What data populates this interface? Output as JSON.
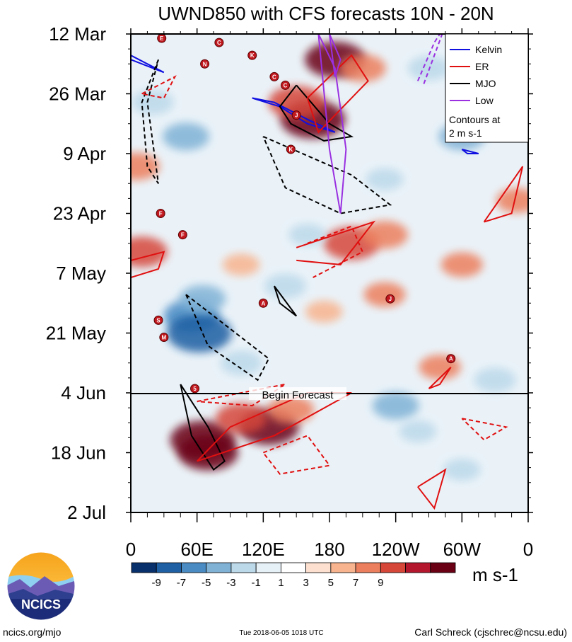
{
  "chart_data": {
    "type": "heatmap",
    "title": "UWND850 with CFS forecasts  10N - 20N",
    "x_tick_labels": [
      "0",
      "60E",
      "120E",
      "180",
      "120W",
      "60W",
      "0"
    ],
    "x_ticks_deg": [
      0,
      60,
      120,
      180,
      240,
      300,
      360
    ],
    "x_range_deg": [
      0,
      360
    ],
    "y_tick_labels": [
      "12 Mar",
      "26 Mar",
      "9 Apr",
      "23 Apr",
      "7 May",
      "21 May",
      "4 Jun",
      "18 Jun",
      "2 Jul"
    ],
    "y_range": [
      "2018-03-12",
      "2018-07-02"
    ],
    "forecast_start": "2018-06-04",
    "forecast_label": "Begin Forecast",
    "colorbar": {
      "levels": [
        -9,
        -7,
        -5,
        -3,
        -1,
        1,
        3,
        5,
        7,
        9
      ],
      "tick_labels": [
        "-9",
        "-7",
        "-5",
        "-3",
        "-1",
        "1",
        "3",
        "5",
        "7",
        "9"
      ],
      "colors": [
        "#08306b",
        "#1f5fa3",
        "#4a8bc4",
        "#80b2d6",
        "#bcd9ea",
        "#e6f0f7",
        "#ffffff",
        "#fde0cf",
        "#f8b48e",
        "#ec7f5d",
        "#d6473a",
        "#b4172d",
        "#6a0014"
      ],
      "units": "m s-1"
    },
    "legend": {
      "placement": "top-right",
      "entries": [
        {
          "name": "Kelvin",
          "color": "#1010e0"
        },
        {
          "name": "ER",
          "color": "#e01010"
        },
        {
          "name": "MJO",
          "color": "#000000"
        },
        {
          "name": "Low",
          "color": "#9a30e0"
        }
      ],
      "note_line1": "Contours at",
      "note_line2": "2 m s-1"
    },
    "anomalies": [
      {
        "lon": 165,
        "date": "2018-04-01",
        "value": 10
      },
      {
        "lon": 150,
        "date": "2018-03-28",
        "value": 8
      },
      {
        "lon": 185,
        "date": "2018-03-18",
        "value": 9
      },
      {
        "lon": 210,
        "date": "2018-03-20",
        "value": 6
      },
      {
        "lon": 65,
        "date": "2018-06-15",
        "value": 10
      },
      {
        "lon": 70,
        "date": "2018-06-18",
        "value": 9
      },
      {
        "lon": 125,
        "date": "2018-06-12",
        "value": 9
      },
      {
        "lon": 100,
        "date": "2018-06-10",
        "value": 7
      },
      {
        "lon": 145,
        "date": "2018-06-08",
        "value": 6
      },
      {
        "lon": 100,
        "date": "2018-05-05",
        "value": 4
      },
      {
        "lon": 200,
        "date": "2018-04-30",
        "value": 8
      },
      {
        "lon": 230,
        "date": "2018-04-28",
        "value": 6
      },
      {
        "lon": 10,
        "date": "2018-05-02",
        "value": 7
      },
      {
        "lon": 230,
        "date": "2018-05-12",
        "value": 5
      },
      {
        "lon": 280,
        "date": "2018-05-29",
        "value": 5
      },
      {
        "lon": 175,
        "date": "2018-05-16",
        "value": 4
      },
      {
        "lon": 55,
        "date": "2018-05-17",
        "value": -8
      },
      {
        "lon": 62,
        "date": "2018-05-21",
        "value": -10
      },
      {
        "lon": 65,
        "date": "2018-05-13",
        "value": -6
      },
      {
        "lon": 100,
        "date": "2018-05-28",
        "value": -5
      },
      {
        "lon": 140,
        "date": "2018-05-10",
        "value": -5
      },
      {
        "lon": 240,
        "date": "2018-06-07",
        "value": -6
      },
      {
        "lon": 260,
        "date": "2018-06-13",
        "value": -4
      },
      {
        "lon": 300,
        "date": "2018-06-22",
        "value": -4
      },
      {
        "lon": 50,
        "date": "2018-04-05",
        "value": -6
      },
      {
        "lon": 300,
        "date": "2018-04-05",
        "value": -6
      },
      {
        "lon": 270,
        "date": "2018-03-20",
        "value": -5
      },
      {
        "lon": 320,
        "date": "2018-03-26",
        "value": -4
      },
      {
        "lon": 230,
        "date": "2018-04-15",
        "value": -4
      },
      {
        "lon": 330,
        "date": "2018-06-01",
        "value": -5
      },
      {
        "lon": 20,
        "date": "2018-03-28",
        "value": -5
      },
      {
        "lon": 160,
        "date": "2018-04-28",
        "value": -4
      },
      {
        "lon": 5,
        "date": "2018-04-12",
        "value": 6
      },
      {
        "lon": 350,
        "date": "2018-04-20",
        "value": 5
      },
      {
        "lon": 300,
        "date": "2018-05-05",
        "value": 5
      }
    ],
    "contours": [
      {
        "type": "Kelvin",
        "sign": "positive",
        "points": [
          [
            110,
            "2018-03-27"
          ],
          [
            135,
            "2018-03-29"
          ],
          [
            160,
            "2018-04-02"
          ],
          [
            185,
            "2018-04-04"
          ],
          [
            160,
            "2018-04-01"
          ],
          [
            130,
            "2018-03-28"
          ],
          [
            110,
            "2018-03-27"
          ]
        ]
      },
      {
        "type": "Kelvin",
        "sign": "positive",
        "points": [
          [
            0,
            "2018-03-17"
          ],
          [
            15,
            "2018-03-19"
          ],
          [
            30,
            "2018-03-21"
          ],
          [
            20,
            "2018-03-20"
          ],
          [
            0,
            "2018-03-18"
          ]
        ]
      },
      {
        "type": "Kelvin",
        "sign": "positive",
        "points": [
          [
            300,
            "2018-04-08"
          ],
          [
            315,
            "2018-04-09"
          ],
          [
            305,
            "2018-04-09"
          ],
          [
            300,
            "2018-04-08"
          ]
        ]
      },
      {
        "type": "MJO",
        "sign": "positive",
        "points": [
          [
            150,
            "2018-03-24"
          ],
          [
            180,
            "2018-04-02"
          ],
          [
            200,
            "2018-04-05"
          ],
          [
            175,
            "2018-04-06"
          ],
          [
            145,
            "2018-04-02"
          ],
          [
            135,
            "2018-03-29"
          ],
          [
            150,
            "2018-03-24"
          ]
        ]
      },
      {
        "type": "MJO",
        "sign": "positive",
        "points": [
          [
            45,
            "2018-06-02"
          ],
          [
            70,
            "2018-06-12"
          ],
          [
            85,
            "2018-06-20"
          ],
          [
            75,
            "2018-06-22"
          ],
          [
            55,
            "2018-06-14"
          ],
          [
            45,
            "2018-06-02"
          ]
        ]
      },
      {
        "type": "MJO",
        "sign": "positive",
        "points": [
          [
            130,
            "2018-05-10"
          ],
          [
            150,
            "2018-05-17"
          ],
          [
            135,
            "2018-05-14"
          ],
          [
            130,
            "2018-05-10"
          ]
        ]
      },
      {
        "type": "MJO",
        "sign": "negative",
        "points": [
          [
            25,
            "2018-03-18"
          ],
          [
            10,
            "2018-03-28"
          ],
          [
            15,
            "2018-04-12"
          ],
          [
            25,
            "2018-04-16"
          ],
          [
            15,
            "2018-03-28"
          ],
          [
            25,
            "2018-03-18"
          ]
        ]
      },
      {
        "type": "MJO",
        "sign": "negative",
        "points": [
          [
            120,
            "2018-04-05"
          ],
          [
            200,
            "2018-04-14"
          ],
          [
            235,
            "2018-04-21"
          ],
          [
            190,
            "2018-04-23"
          ],
          [
            140,
            "2018-04-17"
          ],
          [
            120,
            "2018-04-05"
          ]
        ]
      },
      {
        "type": "MJO",
        "sign": "negative",
        "points": [
          [
            50,
            "2018-05-12"
          ],
          [
            80,
            "2018-05-18"
          ],
          [
            125,
            "2018-05-27"
          ],
          [
            115,
            "2018-06-01"
          ],
          [
            70,
            "2018-05-24"
          ],
          [
            50,
            "2018-05-12"
          ]
        ]
      },
      {
        "type": "ER",
        "sign": "positive",
        "points": [
          [
            0,
            "2018-05-04"
          ],
          [
            30,
            "2018-05-02"
          ],
          [
            25,
            "2018-05-06"
          ],
          [
            0,
            "2018-05-08"
          ]
        ]
      },
      {
        "type": "ER",
        "sign": "positive",
        "points": [
          [
            60,
            "2018-06-20"
          ],
          [
            130,
            "2018-06-14"
          ],
          [
            200,
            "2018-06-04"
          ],
          [
            160,
            "2018-06-04"
          ],
          [
            90,
            "2018-06-12"
          ],
          [
            60,
            "2018-06-20"
          ]
        ]
      },
      {
        "type": "ER",
        "sign": "positive",
        "points": [
          [
            150,
            "2018-05-01"
          ],
          [
            220,
            "2018-04-25"
          ],
          [
            190,
            "2018-05-05"
          ],
          [
            150,
            "2018-05-04"
          ]
        ]
      },
      {
        "type": "ER",
        "sign": "positive",
        "points": [
          [
            160,
            "2018-03-27"
          ],
          [
            200,
            "2018-03-17"
          ],
          [
            215,
            "2018-03-23"
          ],
          [
            170,
            "2018-04-04"
          ],
          [
            160,
            "2018-03-27"
          ]
        ]
      },
      {
        "type": "ER",
        "sign": "positive",
        "points": [
          [
            270,
            "2018-06-03"
          ],
          [
            290,
            "2018-05-29"
          ],
          [
            280,
            "2018-06-02"
          ],
          [
            270,
            "2018-06-03"
          ]
        ]
      },
      {
        "type": "ER",
        "sign": "positive",
        "points": [
          [
            320,
            "2018-04-25"
          ],
          [
            355,
            "2018-04-12"
          ],
          [
            345,
            "2018-04-23"
          ],
          [
            320,
            "2018-04-25"
          ]
        ]
      },
      {
        "type": "ER",
        "sign": "positive",
        "points": [
          [
            260,
            "2018-06-26"
          ],
          [
            285,
            "2018-06-22"
          ],
          [
            275,
            "2018-07-01"
          ],
          [
            260,
            "2018-06-26"
          ]
        ]
      },
      {
        "type": "ER",
        "sign": "negative",
        "points": [
          [
            60,
            "2018-06-06"
          ],
          [
            140,
            "2018-06-02"
          ],
          [
            110,
            "2018-06-07"
          ],
          [
            60,
            "2018-06-06"
          ]
        ]
      },
      {
        "type": "ER",
        "sign": "negative",
        "points": [
          [
            120,
            "2018-06-18"
          ],
          [
            160,
            "2018-06-14"
          ],
          [
            180,
            "2018-06-21"
          ],
          [
            135,
            "2018-06-23"
          ],
          [
            120,
            "2018-06-18"
          ]
        ]
      },
      {
        "type": "ER",
        "sign": "negative",
        "points": [
          [
            160,
            "2018-04-30"
          ],
          [
            200,
            "2018-04-26"
          ],
          [
            210,
            "2018-05-02"
          ],
          [
            165,
            "2018-05-08"
          ]
        ]
      },
      {
        "type": "ER",
        "sign": "negative",
        "points": [
          [
            10,
            "2018-03-26"
          ],
          [
            40,
            "2018-03-22"
          ],
          [
            30,
            "2018-03-27"
          ],
          [
            10,
            "2018-03-26"
          ]
        ]
      },
      {
        "type": "ER",
        "sign": "negative",
        "points": [
          [
            300,
            "2018-06-10"
          ],
          [
            340,
            "2018-06-12"
          ],
          [
            320,
            "2018-06-15"
          ],
          [
            300,
            "2018-06-10"
          ]
        ]
      },
      {
        "type": "Low",
        "sign": "positive",
        "points": [
          [
            170,
            "2018-03-12"
          ],
          [
            185,
            "2018-03-20"
          ],
          [
            195,
            "2018-04-08"
          ],
          [
            190,
            "2018-04-23"
          ],
          [
            180,
            "2018-04-08"
          ],
          [
            170,
            "2018-03-12"
          ]
        ]
      },
      {
        "type": "Low",
        "sign": "positive",
        "points": [
          [
            180,
            "2018-03-12"
          ],
          [
            190,
            "2018-03-18"
          ],
          [
            185,
            "2018-03-22"
          ],
          [
            180,
            "2018-03-12"
          ]
        ]
      },
      {
        "type": "Low",
        "sign": "negative",
        "points": [
          [
            260,
            "2018-03-23"
          ],
          [
            275,
            "2018-03-14"
          ],
          [
            285,
            "2018-03-10"
          ],
          [
            265,
            "2018-03-24"
          ]
        ]
      }
    ],
    "storm_markers": [
      {
        "label": "E",
        "lon": 28,
        "date": "2018-03-13"
      },
      {
        "label": "C",
        "lon": 80,
        "date": "2018-03-14"
      },
      {
        "label": "N",
        "lon": 67,
        "date": "2018-03-19"
      },
      {
        "label": "K",
        "lon": 110,
        "date": "2018-03-17"
      },
      {
        "label": "C",
        "lon": 130,
        "date": "2018-03-22"
      },
      {
        "label": "C",
        "lon": 140,
        "date": "2018-03-24"
      },
      {
        "label": "J",
        "lon": 150,
        "date": "2018-03-31"
      },
      {
        "label": "K",
        "lon": 145,
        "date": "2018-04-08"
      },
      {
        "label": "F",
        "lon": 27,
        "date": "2018-04-23"
      },
      {
        "label": "F",
        "lon": 47,
        "date": "2018-04-28"
      },
      {
        "label": "A",
        "lon": 120,
        "date": "2018-05-14"
      },
      {
        "label": "J",
        "lon": 235,
        "date": "2018-05-13"
      },
      {
        "label": "S",
        "lon": 25,
        "date": "2018-05-18"
      },
      {
        "label": "M",
        "lon": 30,
        "date": "2018-05-22"
      },
      {
        "label": "A",
        "lon": 290,
        "date": "2018-05-27"
      },
      {
        "label": "5",
        "lon": 58,
        "date": "2018-06-03"
      }
    ]
  },
  "footer": {
    "left": "ncics.org/mjo",
    "center": "Tue 2018-06-05 1018 UTC",
    "right": "Carl Schreck (cjschrec@ncsu.edu)",
    "logo_text": "NCICS"
  }
}
